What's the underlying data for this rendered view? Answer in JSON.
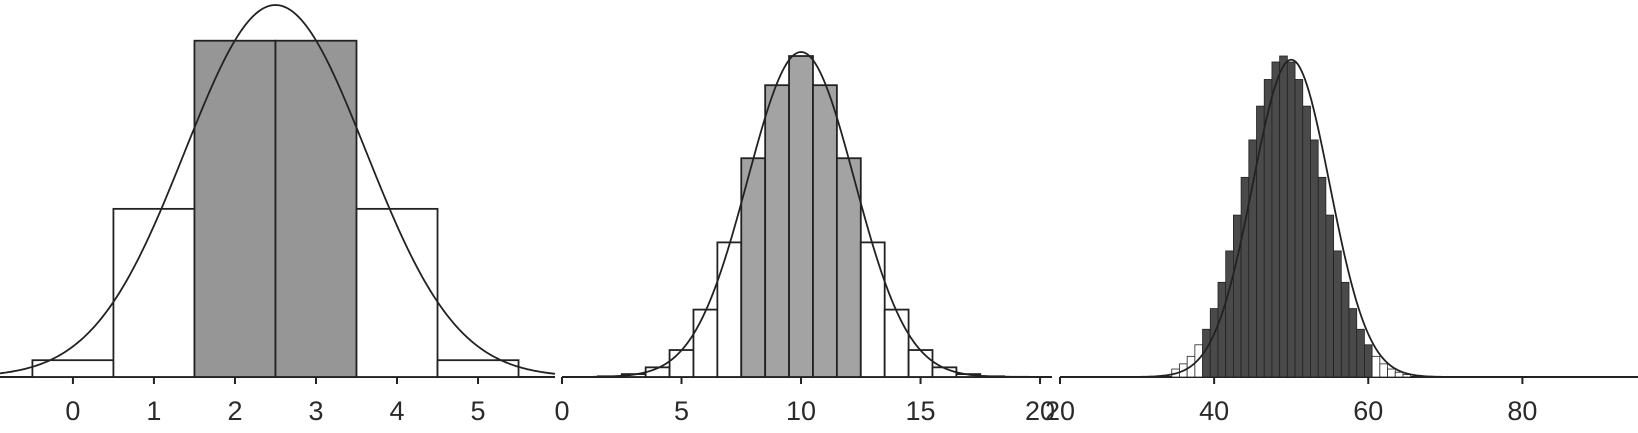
{
  "chart_data": [
    {
      "type": "bar",
      "bar_width": 1,
      "x": [
        0,
        1,
        2,
        3,
        4,
        5
      ],
      "values": [
        1,
        10,
        20,
        20,
        10,
        1
      ],
      "highlight": [
        false,
        false,
        true,
        true,
        false,
        false
      ],
      "curve": {
        "mean": 2.5,
        "sd": 1.118,
        "total": 62
      },
      "xlim": [
        -0.9,
        5.95
      ],
      "ylim": [
        0,
        20
      ],
      "xticks": [
        0,
        1,
        2,
        3,
        4,
        5
      ],
      "title": "",
      "xlabel": "",
      "ylabel": ""
    },
    {
      "type": "bar",
      "bar_width": 1,
      "x": [
        2,
        3,
        4,
        5,
        6,
        7,
        8,
        9,
        10,
        11,
        12,
        13,
        14,
        15,
        16,
        17,
        18,
        19,
        20
      ],
      "values": [
        0.0004,
        0.0016,
        0.0053,
        0.0148,
        0.037,
        0.0739,
        0.1201,
        0.1602,
        0.1762,
        0.1602,
        0.1201,
        0.0739,
        0.037,
        0.0148,
        0.0053,
        0.0016,
        0.0004,
        0.0001,
        0.0
      ],
      "highlight": [
        false,
        false,
        false,
        false,
        false,
        false,
        true,
        true,
        true,
        true,
        true,
        false,
        false,
        false,
        false,
        false,
        false,
        false,
        false
      ],
      "curve": {
        "mean": 10,
        "sd": 2.236,
        "total": 1
      },
      "xlim": [
        0,
        20.5
      ],
      "ylim": [
        0,
        0.1762
      ],
      "xticks": [
        0,
        5,
        10,
        15,
        20
      ],
      "title": "",
      "xlabel": "",
      "ylabel": ""
    },
    {
      "type": "bar",
      "bar_width": 1,
      "x": [
        35,
        36,
        37,
        38,
        39,
        40,
        41,
        42,
        43,
        44,
        45,
        46,
        47,
        48,
        49,
        50,
        51,
        52,
        53,
        54,
        55,
        56,
        57,
        58,
        59,
        60,
        61,
        62,
        63,
        64,
        65
      ],
      "values": [
        0.002,
        0.0033,
        0.0052,
        0.0081,
        0.012,
        0.0172,
        0.0238,
        0.0317,
        0.0407,
        0.0502,
        0.0596,
        0.0681,
        0.0748,
        0.0792,
        0.0807,
        0.0792,
        0.0748,
        0.0681,
        0.0596,
        0.0502,
        0.0407,
        0.0317,
        0.0238,
        0.0172,
        0.012,
        0.0081,
        0.0052,
        0.0033,
        0.002,
        0.0012,
        0.0006
      ],
      "highlight": [
        false,
        false,
        false,
        false,
        true,
        true,
        true,
        true,
        true,
        true,
        true,
        true,
        true,
        true,
        true,
        true,
        true,
        true,
        true,
        true,
        true,
        true,
        true,
        true,
        true,
        true,
        false,
        false,
        false,
        false,
        false
      ],
      "curve": {
        "mean": 50,
        "sd": 5,
        "total": 1
      },
      "xlim": [
        20,
        95
      ],
      "ylim": [
        0,
        0.0807
      ],
      "xticks": [
        20,
        40,
        60,
        80
      ],
      "title": "",
      "xlabel": "",
      "ylabel": ""
    }
  ],
  "colors": {
    "panel1_highlight": "#969696",
    "panel2_highlight": "#a3a3a3",
    "panel3_highlight": "#4a4a4a",
    "outline": "#222222"
  }
}
